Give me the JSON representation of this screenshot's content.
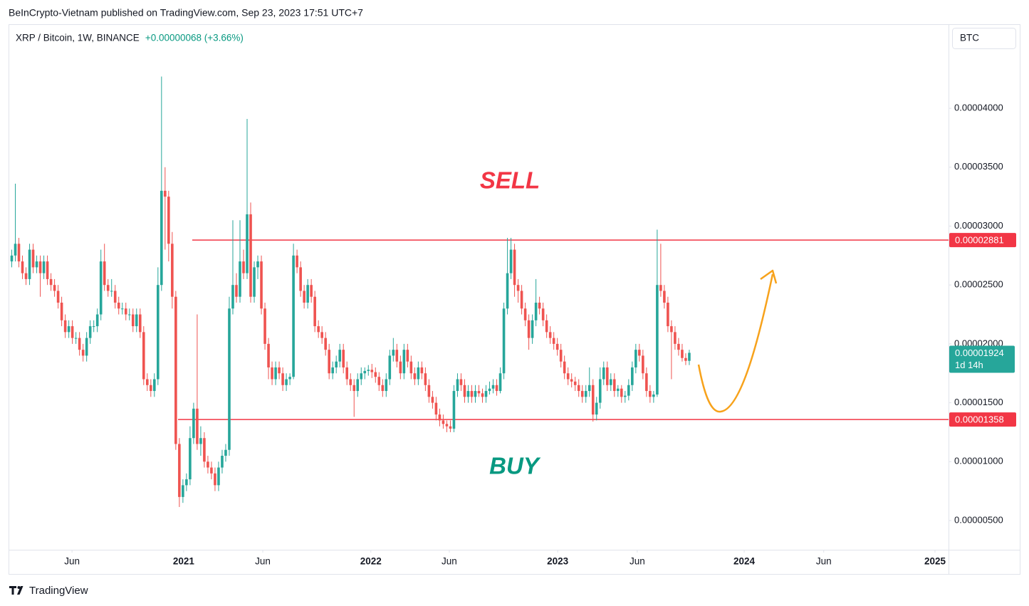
{
  "publisher": "BeInCrypto-Vietnam published on TradingView.com, Sep 23, 2023 17:51 UTC+7",
  "brand": "TradingView",
  "chart_data": {
    "type": "candlestick",
    "title": "XRP / Bitcoin, 1W, BINANCE",
    "change": "+0.00000068 (+3.66%)",
    "currency": "BTC",
    "countdown": "1d 14h",
    "up_color": "#26a69a",
    "down_color": "#ef5350",
    "annotations": [
      {
        "text": "SELL",
        "color": "#f23645"
      },
      {
        "text": "BUY",
        "color": "#089981"
      }
    ],
    "levels": [
      {
        "value": 2.881e-05,
        "color": "#f23645"
      },
      {
        "value": 1.358e-05,
        "color": "#f23645"
      }
    ],
    "ylim": [
      2.52e-06,
      4.708e-05
    ],
    "yticks": [
      {
        "value": 5e-06,
        "label": "0.00000500"
      },
      {
        "value": 1e-05,
        "label": "0.00001000"
      },
      {
        "value": 1.5e-05,
        "label": "0.00001500"
      },
      {
        "value": 2e-05,
        "label": "0.00002000"
      },
      {
        "value": 2.5e-05,
        "label": "0.00002500"
      },
      {
        "value": 3e-05,
        "label": "0.00003000"
      },
      {
        "value": 3.5e-05,
        "label": "0.00003500"
      },
      {
        "value": 4e-05,
        "label": "0.00004000"
      }
    ],
    "xlim": [
      -0.7,
      262.7
    ],
    "xticks": [
      {
        "value": 16.9,
        "label": "Jun"
      },
      {
        "value": 48.2,
        "label": "2021"
      },
      {
        "value": 70.4,
        "label": "Jun"
      },
      {
        "value": 100.7,
        "label": "2022"
      },
      {
        "value": 122.7,
        "label": "Jun"
      },
      {
        "value": 153.1,
        "label": "2023"
      },
      {
        "value": 175.4,
        "label": "Jun"
      },
      {
        "value": 205.4,
        "label": "2024"
      },
      {
        "value": 227.7,
        "label": "Jun"
      },
      {
        "value": 258.9,
        "label": "2025"
      }
    ],
    "candles": [
      [
        2.7e-05,
        2.8e-05,
        2.65e-05,
        2.75e-05
      ],
      [
        2.75e-05,
        3.36e-05,
        2.7e-05,
        2.85e-05
      ],
      [
        2.85e-05,
        2.9e-05,
        2.65e-05,
        2.7e-05
      ],
      [
        2.7e-05,
        2.75e-05,
        2.55e-05,
        2.6e-05
      ],
      [
        2.6e-05,
        2.65e-05,
        2.5e-05,
        2.55e-05
      ],
      [
        2.55e-05,
        2.85e-05,
        2.5e-05,
        2.8e-05
      ],
      [
        2.8e-05,
        2.85e-05,
        2.6e-05,
        2.65e-05
      ],
      [
        2.65e-05,
        2.75e-05,
        2.6e-05,
        2.7e-05
      ],
      [
        2.7e-05,
        2.75e-05,
        2.4e-05,
        2.6e-05
      ],
      [
        2.6e-05,
        2.75e-05,
        2.55e-05,
        2.7e-05
      ],
      [
        2.7e-05,
        2.75e-05,
        2.5e-05,
        2.55e-05
      ],
      [
        2.55e-05,
        2.6e-05,
        2.45e-05,
        2.5e-05
      ],
      [
        2.5e-05,
        2.55e-05,
        2.4e-05,
        2.45e-05
      ],
      [
        2.45e-05,
        2.5e-05,
        2.3e-05,
        2.35e-05
      ],
      [
        2.35e-05,
        2.4e-05,
        2.15e-05,
        2.2e-05
      ],
      [
        2.2e-05,
        2.25e-05,
        2.05e-05,
        2.1e-05
      ],
      [
        2.1e-05,
        2.2e-05,
        2.05e-05,
        2.15e-05
      ],
      [
        2.15e-05,
        2.2e-05,
        2e-05,
        2.05e-05
      ],
      [
        2.05e-05,
        2.1e-05,
        2e-05,
        2.05e-05
      ],
      [
        2.05e-05,
        2.1e-05,
        1.9e-05,
        1.95e-05
      ],
      [
        1.95e-05,
        2e-05,
        1.85e-05,
        1.9e-05
      ],
      [
        1.9e-05,
        2.1e-05,
        1.85e-05,
        2.05e-05
      ],
      [
        2.05e-05,
        2.2e-05,
        2e-05,
        2.15e-05
      ],
      [
        2.15e-05,
        2.2e-05,
        2.1e-05,
        2.15e-05
      ],
      [
        2.15e-05,
        2.3e-05,
        2.1e-05,
        2.25e-05
      ],
      [
        2.25e-05,
        2.8e-05,
        2.2e-05,
        2.7e-05
      ],
      [
        2.7e-05,
        2.85e-05,
        2.45e-05,
        2.5e-05
      ],
      [
        2.5e-05,
        2.55e-05,
        2.4e-05,
        2.45e-05
      ],
      [
        2.45e-05,
        2.55e-05,
        2.4e-05,
        2.45e-05
      ],
      [
        2.45e-05,
        2.5e-05,
        2.3e-05,
        2.35e-05
      ],
      [
        2.35e-05,
        2.4e-05,
        2.25e-05,
        2.3e-05
      ],
      [
        2.3e-05,
        2.35e-05,
        2.25e-05,
        2.3e-05
      ],
      [
        2.3e-05,
        2.35e-05,
        2.2e-05,
        2.25e-05
      ],
      [
        2.25e-05,
        2.3e-05,
        2.2e-05,
        2.25e-05
      ],
      [
        2.25e-05,
        2.3e-05,
        2.1e-05,
        2.15e-05
      ],
      [
        2.15e-05,
        2.3e-05,
        2.1e-05,
        2.25e-05
      ],
      [
        2.25e-05,
        2.3e-05,
        2.05e-05,
        2.1e-05
      ],
      [
        2.1e-05,
        2.15e-05,
        1.65e-05,
        1.7e-05
      ],
      [
        1.7e-05,
        1.75e-05,
        1.6e-05,
        1.65e-05
      ],
      [
        1.65e-05,
        1.7e-05,
        1.55e-05,
        1.6e-05
      ],
      [
        1.6e-05,
        1.75e-05,
        1.55e-05,
        1.7e-05
      ],
      [
        1.7e-05,
        2.65e-05,
        1.65e-05,
        2.5e-05
      ],
      [
        2.5e-05,
        4.27e-05,
        2.45e-05,
        3.3e-05
      ],
      [
        3.3e-05,
        3.5e-05,
        2.8e-05,
        3.25e-05
      ],
      [
        3.25e-05,
        3.3e-05,
        2.7e-05,
        2.85e-05
      ],
      [
        2.85e-05,
        2.95e-05,
        2.3e-05,
        2.4e-05
      ],
      [
        2.4e-05,
        2.45e-05,
        1.1e-05,
        1.15e-05
      ],
      [
        1.15e-05,
        1.2e-05,
        6.15e-06,
        7e-06
      ],
      [
        7e-06,
        8.5e-06,
        6.5e-06,
        8e-06
      ],
      [
        8e-06,
        9e-06,
        7.5e-06,
        8.5e-06
      ],
      [
        8.5e-06,
        1.3e-05,
        8e-06,
        1.2e-05
      ],
      [
        1.2e-05,
        1.5e-05,
        1.15e-05,
        1.45e-05
      ],
      [
        1.45e-05,
        2.25e-05,
        1.1e-05,
        1.15e-05
      ],
      [
        1.15e-05,
        1.3e-05,
        1.05e-05,
        1.2e-05
      ],
      [
        1.2e-05,
        1.25e-05,
        9.5e-06,
        1e-05
      ],
      [
        1e-05,
        1.05e-05,
        9e-06,
        9.5e-06
      ],
      [
        9.5e-06,
        1e-05,
        8.5e-06,
        9e-06
      ],
      [
        9e-06,
        9.5e-06,
        7.5e-06,
        8e-06
      ],
      [
        8e-06,
        1e-05,
        7.5e-06,
        9.5e-06
      ],
      [
        9.5e-06,
        1.1e-05,
        9e-06,
        1.05e-05
      ],
      [
        1.05e-05,
        1.15e-05,
        1e-05,
        1.1e-05
      ],
      [
        1.1e-05,
        2.4e-05,
        1.05e-05,
        2.3e-05
      ],
      [
        2.3e-05,
        3.05e-05,
        2.25e-05,
        2.5e-05
      ],
      [
        2.5e-05,
        2.6e-05,
        2.35e-05,
        2.4e-05
      ],
      [
        2.4e-05,
        3.05e-05,
        2.35e-05,
        2.7e-05
      ],
      [
        2.7e-05,
        2.8e-05,
        2.55e-05,
        2.6e-05
      ],
      [
        2.6e-05,
        3.91e-05,
        2.55e-05,
        3.1e-05
      ],
      [
        3.1e-05,
        3.2e-05,
        2.35e-05,
        2.4e-05
      ],
      [
        2.4e-05,
        2.7e-05,
        2.35e-05,
        2.65e-05
      ],
      [
        2.65e-05,
        2.75e-05,
        2.55e-05,
        2.7e-05
      ],
      [
        2.7e-05,
        2.75e-05,
        2.25e-05,
        2.3e-05
      ],
      [
        2.3e-05,
        2.35e-05,
        1.95e-05,
        2e-05
      ],
      [
        2e-05,
        2.05e-05,
        1.7e-05,
        1.8e-05
      ],
      [
        1.8e-05,
        1.85e-05,
        1.65e-05,
        1.7e-05
      ],
      [
        1.7e-05,
        1.85e-05,
        1.65e-05,
        1.8e-05
      ],
      [
        1.8e-05,
        1.85e-05,
        1.7e-05,
        1.75e-05
      ],
      [
        1.75e-05,
        1.8e-05,
        1.6e-05,
        1.65e-05
      ],
      [
        1.65e-05,
        1.75e-05,
        1.6e-05,
        1.7e-05
      ],
      [
        1.7e-05,
        1.75e-05,
        1.65e-05,
        1.72e-05
      ],
      [
        1.72e-05,
        2.85e-05,
        1.7e-05,
        2.75e-05
      ],
      [
        2.75e-05,
        2.8e-05,
        2.6e-05,
        2.65e-05
      ],
      [
        2.65e-05,
        2.7e-05,
        2.4e-05,
        2.45e-05
      ],
      [
        2.45e-05,
        2.5e-05,
        2.3e-05,
        2.35e-05
      ],
      [
        2.35e-05,
        2.55e-05,
        2.3e-05,
        2.5e-05
      ],
      [
        2.5e-05,
        2.55e-05,
        2.35e-05,
        2.4e-05
      ],
      [
        2.4e-05,
        2.45e-05,
        2.1e-05,
        2.15e-05
      ],
      [
        2.15e-05,
        2.2e-05,
        2.05e-05,
        2.1e-05
      ],
      [
        2.1e-05,
        2.15e-05,
        2e-05,
        2.05e-05
      ],
      [
        2.05e-05,
        2.1e-05,
        1.9e-05,
        1.95e-05
      ],
      [
        1.95e-05,
        2e-05,
        1.7e-05,
        1.75e-05
      ],
      [
        1.75e-05,
        1.85e-05,
        1.7e-05,
        1.8e-05
      ],
      [
        1.8e-05,
        1.9e-05,
        1.75e-05,
        1.85e-05
      ],
      [
        1.85e-05,
        2e-05,
        1.8e-05,
        1.95e-05
      ],
      [
        1.95e-05,
        2e-05,
        1.75e-05,
        1.8e-05
      ],
      [
        1.8e-05,
        1.85e-05,
        1.65e-05,
        1.7e-05
      ],
      [
        1.7e-05,
        1.75e-05,
        1.6e-05,
        1.65e-05
      ],
      [
        1.65e-05,
        1.7e-05,
        1.38e-05,
        1.6e-05
      ],
      [
        1.6e-05,
        1.75e-05,
        1.55e-05,
        1.7e-05
      ],
      [
        1.7e-05,
        1.8e-05,
        1.65e-05,
        1.75e-05
      ],
      [
        1.75e-05,
        1.8e-05,
        1.7e-05,
        1.77e-05
      ],
      [
        1.77e-05,
        1.82e-05,
        1.73e-05,
        1.78e-05
      ],
      [
        1.78e-05,
        1.83e-05,
        1.71e-05,
        1.76e-05
      ],
      [
        1.76e-05,
        1.8e-05,
        1.67e-05,
        1.72e-05
      ],
      [
        1.72e-05,
        1.76e-05,
        1.6e-05,
        1.65e-05
      ],
      [
        1.65e-05,
        1.7e-05,
        1.55e-05,
        1.6e-05
      ],
      [
        1.6e-05,
        1.75e-05,
        1.55e-05,
        1.7e-05
      ],
      [
        1.7e-05,
        1.95e-05,
        1.65e-05,
        1.9e-05
      ],
      [
        1.9e-05,
        2.05e-05,
        1.85e-05,
        1.95e-05
      ],
      [
        1.95e-05,
        2e-05,
        1.8e-05,
        1.85e-05
      ],
      [
        1.85e-05,
        1.9e-05,
        1.7e-05,
        1.75e-05
      ],
      [
        1.75e-05,
        2e-05,
        1.7e-05,
        1.95e-05
      ],
      [
        1.95e-05,
        2e-05,
        1.8e-05,
        1.85e-05
      ],
      [
        1.85e-05,
        1.9e-05,
        1.7e-05,
        1.75e-05
      ],
      [
        1.75e-05,
        1.8e-05,
        1.65e-05,
        1.7e-05
      ],
      [
        1.7e-05,
        1.85e-05,
        1.65e-05,
        1.8e-05
      ],
      [
        1.8e-05,
        1.85e-05,
        1.7e-05,
        1.75e-05
      ],
      [
        1.75e-05,
        1.8e-05,
        1.6e-05,
        1.65e-05
      ],
      [
        1.65e-05,
        1.7e-05,
        1.5e-05,
        1.55e-05
      ],
      [
        1.55e-05,
        1.6e-05,
        1.45e-05,
        1.5e-05
      ],
      [
        1.5e-05,
        1.55e-05,
        1.35e-05,
        1.4e-05
      ],
      [
        1.4e-05,
        1.45e-05,
        1.3e-05,
        1.35e-05
      ],
      [
        1.35e-05,
        1.4e-05,
        1.28e-05,
        1.32e-05
      ],
      [
        1.32e-05,
        1.35e-05,
        1.25e-05,
        1.3e-05
      ],
      [
        1.3e-05,
        1.35e-05,
        1.25e-05,
        1.28e-05
      ],
      [
        1.28e-05,
        1.65e-05,
        1.25e-05,
        1.6e-05
      ],
      [
        1.6e-05,
        1.75e-05,
        1.55e-05,
        1.7e-05
      ],
      [
        1.7e-05,
        1.75e-05,
        1.6e-05,
        1.65e-05
      ],
      [
        1.65e-05,
        1.7e-05,
        1.5e-05,
        1.55e-05
      ],
      [
        1.55e-05,
        1.65e-05,
        1.5e-05,
        1.6e-05
      ],
      [
        1.6e-05,
        1.65e-05,
        1.5e-05,
        1.55e-05
      ],
      [
        1.55e-05,
        1.65e-05,
        1.5e-05,
        1.6e-05
      ],
      [
        1.6e-05,
        1.65e-05,
        1.55e-05,
        1.58e-05
      ],
      [
        1.58e-05,
        1.62e-05,
        1.5e-05,
        1.55e-05
      ],
      [
        1.55e-05,
        1.65e-05,
        1.5e-05,
        1.6e-05
      ],
      [
        1.6e-05,
        1.68e-05,
        1.57e-05,
        1.62e-05
      ],
      [
        1.62e-05,
        1.7e-05,
        1.58e-05,
        1.65e-05
      ],
      [
        1.65e-05,
        1.7e-05,
        1.56e-05,
        1.6e-05
      ],
      [
        1.6e-05,
        1.8e-05,
        1.58e-05,
        1.75e-05
      ],
      [
        1.75e-05,
        2.35e-05,
        1.7e-05,
        2.3e-05
      ],
      [
        2.3e-05,
        2.9e-05,
        2.25e-05,
        2.6e-05
      ],
      [
        2.6e-05,
        2.9e-05,
        2.55e-05,
        2.8e-05
      ],
      [
        2.8e-05,
        2.85e-05,
        2.4e-05,
        2.5e-05
      ],
      [
        2.5e-05,
        2.55e-05,
        2.35e-05,
        2.45e-05
      ],
      [
        2.45e-05,
        2.5e-05,
        2.25e-05,
        2.3e-05
      ],
      [
        2.3e-05,
        2.35e-05,
        2.15e-05,
        2.2e-05
      ],
      [
        2.2e-05,
        2.25e-05,
        1.95e-05,
        2.05e-05
      ],
      [
        2.05e-05,
        2.25e-05,
        2e-05,
        2.2e-05
      ],
      [
        2.2e-05,
        2.55e-05,
        2.15e-05,
        2.35e-05
      ],
      [
        2.35e-05,
        2.4e-05,
        2.25e-05,
        2.3e-05
      ],
      [
        2.3e-05,
        2.35e-05,
        2.15e-05,
        2.2e-05
      ],
      [
        2.2e-05,
        2.25e-05,
        2.05e-05,
        2.1e-05
      ],
      [
        2.1e-05,
        2.15e-05,
        2e-05,
        2.05e-05
      ],
      [
        2.05e-05,
        2.1e-05,
        1.95e-05,
        2e-05
      ],
      [
        2e-05,
        2.05e-05,
        1.9e-05,
        1.95e-05
      ],
      [
        1.95e-05,
        2e-05,
        1.8e-05,
        1.85e-05
      ],
      [
        1.85e-05,
        1.9e-05,
        1.7e-05,
        1.75e-05
      ],
      [
        1.75e-05,
        1.8e-05,
        1.65e-05,
        1.7e-05
      ],
      [
        1.7e-05,
        1.75e-05,
        1.63e-05,
        1.68e-05
      ],
      [
        1.68e-05,
        1.72e-05,
        1.6e-05,
        1.65e-05
      ],
      [
        1.65e-05,
        1.7e-05,
        1.55e-05,
        1.6e-05
      ],
      [
        1.6e-05,
        1.65e-05,
        1.5e-05,
        1.55e-05
      ],
      [
        1.55e-05,
        1.65e-05,
        1.5e-05,
        1.6e-05
      ],
      [
        1.6e-05,
        1.8e-05,
        1.55e-05,
        1.65e-05
      ],
      [
        1.65e-05,
        1.7e-05,
        1.34e-05,
        1.4e-05
      ],
      [
        1.4e-05,
        1.55e-05,
        1.35e-05,
        1.5e-05
      ],
      [
        1.5e-05,
        1.8e-05,
        1.45e-05,
        1.7e-05
      ],
      [
        1.7e-05,
        1.85e-05,
        1.65e-05,
        1.8e-05
      ],
      [
        1.8e-05,
        1.85e-05,
        1.6e-05,
        1.65e-05
      ],
      [
        1.65e-05,
        1.75e-05,
        1.6e-05,
        1.7e-05
      ],
      [
        1.7e-05,
        1.75e-05,
        1.55e-05,
        1.6e-05
      ],
      [
        1.6e-05,
        1.65e-05,
        1.55e-05,
        1.62e-05
      ],
      [
        1.62e-05,
        1.65e-05,
        1.5e-05,
        1.55e-05
      ],
      [
        1.55e-05,
        1.6e-05,
        1.5e-05,
        1.56e-05
      ],
      [
        1.56e-05,
        1.7e-05,
        1.52e-05,
        1.65e-05
      ],
      [
        1.65e-05,
        1.85e-05,
        1.6e-05,
        1.8e-05
      ],
      [
        1.8e-05,
        2e-05,
        1.75e-05,
        1.95e-05
      ],
      [
        1.95e-05,
        2e-05,
        1.85e-05,
        1.9e-05
      ],
      [
        1.9e-05,
        1.95e-05,
        1.7e-05,
        1.75e-05
      ],
      [
        1.75e-05,
        1.8e-05,
        1.55e-05,
        1.6e-05
      ],
      [
        1.6e-05,
        1.65e-05,
        1.5e-05,
        1.55e-05
      ],
      [
        1.55e-05,
        1.6e-05,
        1.5e-05,
        1.57e-05
      ],
      [
        1.57e-05,
        2.97e-05,
        1.55e-05,
        2.5e-05
      ],
      [
        2.5e-05,
        2.85e-05,
        2.4e-05,
        2.45e-05
      ],
      [
        2.45e-05,
        2.5e-05,
        2.3e-05,
        2.35e-05
      ],
      [
        2.35e-05,
        2.4e-05,
        2.1e-05,
        2.15e-05
      ],
      [
        2.15e-05,
        2.2e-05,
        1.7e-05,
        2.1e-05
      ],
      [
        2.1e-05,
        2.15e-05,
        1.95e-05,
        2e-05
      ],
      [
        2e-05,
        2.05e-05,
        1.9e-05,
        1.95e-05
      ],
      [
        1.95e-05,
        2e-05,
        1.85e-05,
        1.88e-05
      ],
      [
        1.88e-05,
        1.92e-05,
        1.82e-05,
        1.856e-05
      ],
      [
        1.856e-05,
        1.95e-05,
        1.82e-05,
        1.924e-05
      ]
    ]
  }
}
